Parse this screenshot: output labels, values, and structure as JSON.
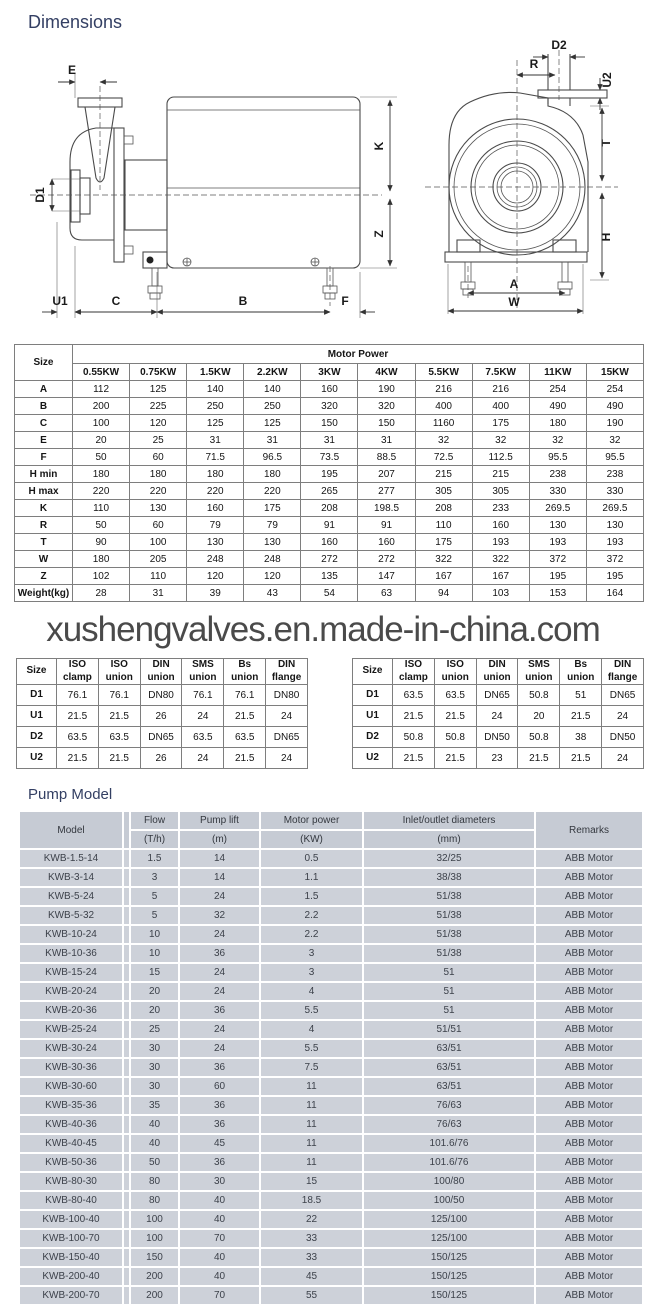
{
  "headings": {
    "dimensions": "Dimensions",
    "pump_model": "Pump Model"
  },
  "watermark": "xushengvalves.en.made-in-china.com",
  "drawing": {
    "side_view_labels": {
      "e": "E",
      "d1": "D1",
      "u1": "U1",
      "c": "C",
      "b": "B",
      "f": "F",
      "k": "K",
      "z": "Z"
    },
    "front_view_labels": {
      "d2": "D2",
      "r": "R",
      "u2": "U2",
      "t": "T",
      "h": "H",
      "a": "A",
      "w": "W"
    }
  },
  "motor_power_table": {
    "size_header": "Size",
    "group_header": "Motor Power",
    "power_columns": [
      "0.55KW",
      "0.75KW",
      "1.5KW",
      "2.2KW",
      "3KW",
      "4KW",
      "5.5KW",
      "7.5KW",
      "11KW",
      "15KW"
    ],
    "rows": [
      {
        "label": "A",
        "values": [
          "112",
          "125",
          "140",
          "140",
          "160",
          "190",
          "216",
          "216",
          "254",
          "254"
        ]
      },
      {
        "label": "B",
        "values": [
          "200",
          "225",
          "250",
          "250",
          "320",
          "320",
          "400",
          "400",
          "490",
          "490"
        ]
      },
      {
        "label": "C",
        "values": [
          "100",
          "120",
          "125",
          "125",
          "150",
          "150",
          "1160",
          "175",
          "180",
          "190"
        ]
      },
      {
        "label": "E",
        "values": [
          "20",
          "25",
          "31",
          "31",
          "31",
          "31",
          "32",
          "32",
          "32",
          "32"
        ]
      },
      {
        "label": "F",
        "values": [
          "50",
          "60",
          "71.5",
          "96.5",
          "73.5",
          "88.5",
          "72.5",
          "112.5",
          "95.5",
          "95.5"
        ]
      },
      {
        "label": "H min",
        "values": [
          "180",
          "180",
          "180",
          "180",
          "195",
          "207",
          "215",
          "215",
          "238",
          "238"
        ]
      },
      {
        "label": "H max",
        "values": [
          "220",
          "220",
          "220",
          "220",
          "265",
          "277",
          "305",
          "305",
          "330",
          "330"
        ]
      },
      {
        "label": "K",
        "values": [
          "110",
          "130",
          "160",
          "175",
          "208",
          "198.5",
          "208",
          "233",
          "269.5",
          "269.5"
        ]
      },
      {
        "label": "R",
        "values": [
          "50",
          "60",
          "79",
          "79",
          "91",
          "91",
          "110",
          "160",
          "130",
          "130"
        ]
      },
      {
        "label": "T",
        "values": [
          "90",
          "100",
          "130",
          "130",
          "160",
          "160",
          "175",
          "193",
          "193",
          "193"
        ]
      },
      {
        "label": "W",
        "values": [
          "180",
          "205",
          "248",
          "248",
          "272",
          "272",
          "322",
          "322",
          "372",
          "372"
        ]
      },
      {
        "label": "Z",
        "values": [
          "102",
          "110",
          "120",
          "120",
          "135",
          "147",
          "167",
          "167",
          "195",
          "195"
        ]
      },
      {
        "label": "Weight(kg)",
        "values": [
          "28",
          "31",
          "39",
          "43",
          "54",
          "63",
          "94",
          "103",
          "153",
          "164"
        ]
      }
    ]
  },
  "connection_tables": [
    {
      "headers": [
        "Size",
        "ISO clamp",
        "ISO union",
        "DIN union",
        "SMS union",
        "Bs union",
        "DIN flange"
      ],
      "rows": [
        {
          "label": "D1",
          "values": [
            "76.1",
            "76.1",
            "DN80",
            "76.1",
            "76.1",
            "DN80"
          ]
        },
        {
          "label": "U1",
          "values": [
            "21.5",
            "21.5",
            "26",
            "24",
            "21.5",
            "24"
          ]
        },
        {
          "label": "D2",
          "values": [
            "63.5",
            "63.5",
            "DN65",
            "63.5",
            "63.5",
            "DN65"
          ]
        },
        {
          "label": "U2",
          "values": [
            "21.5",
            "21.5",
            "26",
            "24",
            "21.5",
            "24"
          ]
        }
      ]
    },
    {
      "headers": [
        "Size",
        "ISO clamp",
        "ISO union",
        "DIN union",
        "SMS union",
        "Bs union",
        "DIN flange"
      ],
      "rows": [
        {
          "label": "D1",
          "values": [
            "63.5",
            "63.5",
            "DN65",
            "50.8",
            "51",
            "DN65"
          ]
        },
        {
          "label": "U1",
          "values": [
            "21.5",
            "21.5",
            "24",
            "20",
            "21.5",
            "24"
          ]
        },
        {
          "label": "D2",
          "values": [
            "50.8",
            "50.8",
            "DN50",
            "50.8",
            "38",
            "DN50"
          ]
        },
        {
          "label": "U2",
          "values": [
            "21.5",
            "21.5",
            "23",
            "21.5",
            "21.5",
            "24"
          ]
        }
      ]
    }
  ],
  "pump_model_table": {
    "columns": [
      {
        "label": "Model",
        "unit": ""
      },
      {
        "label": "Flow",
        "unit": "(T/h)"
      },
      {
        "label": "Pump lift",
        "unit": "(m)"
      },
      {
        "label": "Motor power",
        "unit": "(KW)"
      },
      {
        "label": "Inlet/outlet diameters",
        "unit": "(mm)"
      },
      {
        "label": "Remarks",
        "unit": ""
      }
    ],
    "rows": [
      [
        "KWB-1.5-14",
        "1.5",
        "14",
        "0.5",
        "32/25",
        "ABB Motor"
      ],
      [
        "KWB-3-14",
        "3",
        "14",
        "1.1",
        "38/38",
        "ABB Motor"
      ],
      [
        "KWB-5-24",
        "5",
        "24",
        "1.5",
        "51/38",
        "ABB Motor"
      ],
      [
        "KWB-5-32",
        "5",
        "32",
        "2.2",
        "51/38",
        "ABB Motor"
      ],
      [
        "KWB-10-24",
        "10",
        "24",
        "2.2",
        "51/38",
        "ABB Motor"
      ],
      [
        "KWB-10-36",
        "10",
        "36",
        "3",
        "51/38",
        "ABB Motor"
      ],
      [
        "KWB-15-24",
        "15",
        "24",
        "3",
        "51",
        "ABB Motor"
      ],
      [
        "KWB-20-24",
        "20",
        "24",
        "4",
        "51",
        "ABB Motor"
      ],
      [
        "KWB-20-36",
        "20",
        "36",
        "5.5",
        "51",
        "ABB Motor"
      ],
      [
        "KWB-25-24",
        "25",
        "24",
        "4",
        "51/51",
        "ABB Motor"
      ],
      [
        "KWB-30-24",
        "30",
        "24",
        "5.5",
        "63/51",
        "ABB Motor"
      ],
      [
        "KWB-30-36",
        "30",
        "36",
        "7.5",
        "63/51",
        "ABB Motor"
      ],
      [
        "KWB-30-60",
        "30",
        "60",
        "11",
        "63/51",
        "ABB Motor"
      ],
      [
        "KWB-35-36",
        "35",
        "36",
        "11",
        "76/63",
        "ABB Motor"
      ],
      [
        "KWB-40-36",
        "40",
        "36",
        "11",
        "76/63",
        "ABB Motor"
      ],
      [
        "KWB-40-45",
        "40",
        "45",
        "11",
        "101.6/76",
        "ABB Motor"
      ],
      [
        "KWB-50-36",
        "50",
        "36",
        "11",
        "101.6/76",
        "ABB Motor"
      ],
      [
        "KWB-80-30",
        "80",
        "30",
        "15",
        "100/80",
        "ABB Motor"
      ],
      [
        "KWB-80-40",
        "80",
        "40",
        "18.5",
        "100/50",
        "ABB Motor"
      ],
      [
        "KWB-100-40",
        "100",
        "40",
        "22",
        "125/100",
        "ABB Motor"
      ],
      [
        "KWB-100-70",
        "100",
        "70",
        "33",
        "125/100",
        "ABB Motor"
      ],
      [
        "KWB-150-40",
        "150",
        "40",
        "33",
        "150/125",
        "ABB Motor"
      ],
      [
        "KWB-200-40",
        "200",
        "40",
        "45",
        "150/125",
        "ABB Motor"
      ],
      [
        "KWB-200-70",
        "200",
        "70",
        "55",
        "150/125",
        "ABB Motor"
      ]
    ]
  }
}
